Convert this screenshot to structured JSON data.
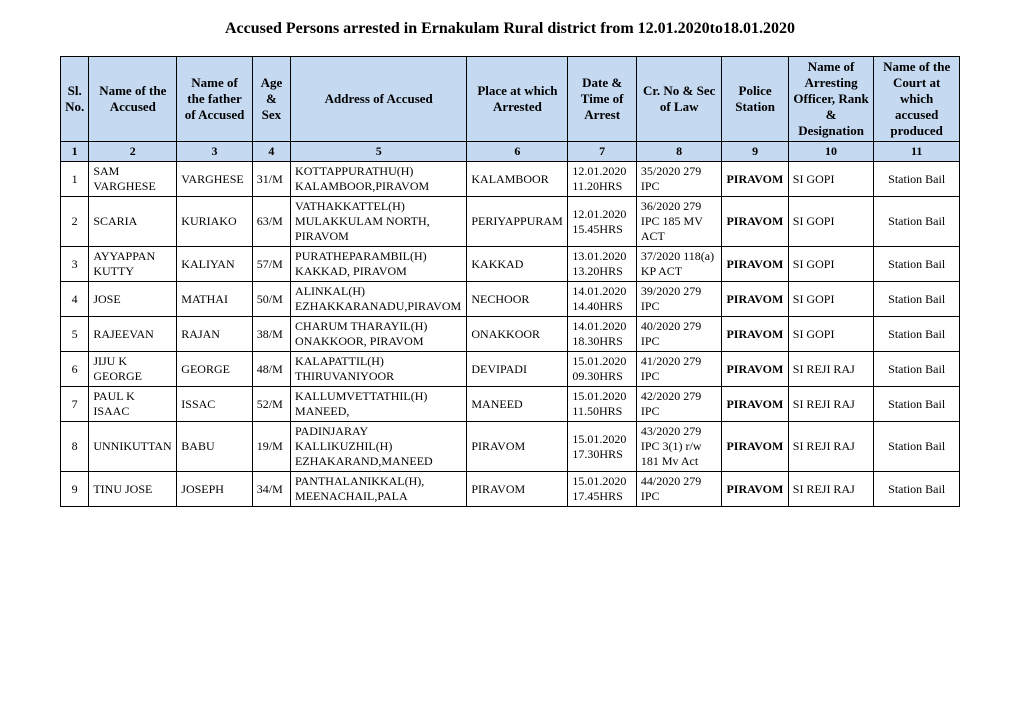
{
  "title": "Accused Persons arrested in   Ernakulam Rural   district from  12.01.2020to18.01.2020",
  "headers": [
    "Sl. No.",
    "Name of the Accused",
    "Name of the father of Accused",
    "Age & Sex",
    "Address of Accused",
    "Place at which Arrested",
    "Date & Time of Arrest",
    "Cr. No & Sec of Law",
    "Police Station",
    "Name of Arresting Officer, Rank & Designation",
    "Name of the Court at which accused produced"
  ],
  "numrow": [
    "1",
    "2",
    "3",
    "4",
    "5",
    "6",
    "7",
    "8",
    "9",
    "10",
    "11"
  ],
  "rows": [
    {
      "sl": "1",
      "name": "SAM VARGHESE",
      "father": "VARGHESE",
      "age": "31/M",
      "addr": "KOTTAPPURATHU(H) KALAMBOOR,PIRAVOM",
      "place": "KALAMBOOR",
      "date": "12.01.2020 11.20HRS",
      "cr": "35/2020  279 IPC",
      "ps": "PIRAVOM",
      "officer": "SI GOPI",
      "court": "Station Bail"
    },
    {
      "sl": "2",
      "name": "SCARIA",
      "father": "KURIAKO",
      "age": "63/M",
      "addr": "VATHAKKATTEL(H) MULAKKULAM NORTH, PIRAVOM",
      "place": "PERIYAPPURAM",
      "date": "12.01.2020 15.45HRS",
      "cr": "36/2020  279 IPC 185 MV ACT",
      "ps": "PIRAVOM",
      "officer": "SI GOPI",
      "court": "Station Bail"
    },
    {
      "sl": "3",
      "name": "AYYAPPAN KUTTY",
      "father": "KALIYAN",
      "age": "57/M",
      "addr": "PURATHEPARAMBIL(H) KAKKAD, PIRAVOM",
      "place": "KAKKAD",
      "date": "13.01.2020 13.20HRS",
      "cr": "37/2020  118(a) KP ACT",
      "ps": "PIRAVOM",
      "officer": "SI GOPI",
      "court": "Station Bail"
    },
    {
      "sl": "4",
      "name": "JOSE",
      "father": "MATHAI",
      "age": "50/M",
      "addr": "ALINKAL(H) EZHAKKARANADU,PIRAVOM",
      "place": "NECHOOR",
      "date": "14.01.2020 14.40HRS",
      "cr": "39/2020  279 IPC",
      "ps": "PIRAVOM",
      "officer": "SI GOPI",
      "court": "Station Bail"
    },
    {
      "sl": "5",
      "name": "RAJEEVAN",
      "father": "RAJAN",
      "age": "38/M",
      "addr": "CHARUM THARAYIL(H) ONAKKOOR, PIRAVOM",
      "place": "ONAKKOOR",
      "date": "14.01.2020 18.30HRS",
      "cr": "40/2020  279 IPC",
      "ps": "PIRAVOM",
      "officer": "SI GOPI",
      "court": "Station Bail"
    },
    {
      "sl": "6",
      "name": "JIJU K GEORGE",
      "father": "GEORGE",
      "age": "48/M",
      "addr": "KALAPATTIL(H) THIRUVANIYOOR",
      "place": "DEVIPADI",
      "date": "15.01.2020 09.30HRS",
      "cr": "41/2020  279 IPC",
      "ps": "PIRAVOM",
      "officer": "SI REJI RAJ",
      "court": "Station Bail"
    },
    {
      "sl": "7",
      "name": "PAUL K ISAAC",
      "father": "ISSAC",
      "age": "52/M",
      "addr": "KALLUMVETTATHIL(H) MANEED,",
      "place": "MANEED",
      "date": "15.01.2020 11.50HRS",
      "cr": "42/2020  279 IPC",
      "ps": "PIRAVOM",
      "officer": "SI REJI RAJ",
      "court": "Station Bail"
    },
    {
      "sl": "8",
      "name": "UNNIKUTTAN",
      "father": "BABU",
      "age": "19/M",
      "addr": "PADINJARAY KALLIKUZHIL(H) EZHAKARAND,MANEED",
      "place": "PIRAVOM",
      "date": "15.01.2020 17.30HRS",
      "cr": "43/2020  279 IPC 3(1) r/w 181 Mv Act",
      "ps": "PIRAVOM",
      "officer": "SI REJI RAJ",
      "court": "Station Bail"
    },
    {
      "sl": "9",
      "name": "TINU JOSE",
      "father": "JOSEPH",
      "age": "34/M",
      "addr": "PANTHALANIKKAL(H), MEENACHAIL,PALA",
      "place": "PIRAVOM",
      "date": "15.01.2020 17.45HRS",
      "cr": "44/2020  279 IPC",
      "ps": "PIRAVOM",
      "officer": "SI REJI RAJ",
      "court": "Station Bail"
    }
  ]
}
